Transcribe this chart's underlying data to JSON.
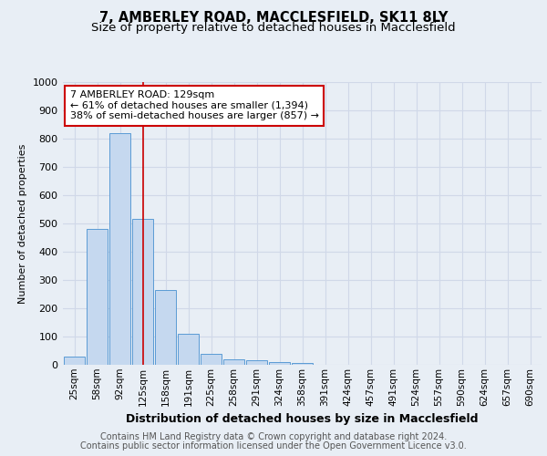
{
  "title1": "7, AMBERLEY ROAD, MACCLESFIELD, SK11 8LY",
  "title2": "Size of property relative to detached houses in Macclesfield",
  "xlabel": "Distribution of detached houses by size in Macclesfield",
  "ylabel": "Number of detached properties",
  "bar_labels": [
    "25sqm",
    "58sqm",
    "92sqm",
    "125sqm",
    "158sqm",
    "191sqm",
    "225sqm",
    "258sqm",
    "291sqm",
    "324sqm",
    "358sqm",
    "391sqm",
    "424sqm",
    "457sqm",
    "491sqm",
    "524sqm",
    "557sqm",
    "590sqm",
    "624sqm",
    "657sqm",
    "690sqm"
  ],
  "bar_values": [
    28,
    480,
    820,
    515,
    265,
    110,
    38,
    20,
    15,
    10,
    8,
    0,
    0,
    0,
    0,
    0,
    0,
    0,
    0,
    0,
    0
  ],
  "bar_color": "#c5d8ef",
  "bar_edge_color": "#5b9bd5",
  "property_index": 3,
  "property_line_color": "#cc0000",
  "annotation_text": "7 AMBERLEY ROAD: 129sqm\n← 61% of detached houses are smaller (1,394)\n38% of semi-detached houses are larger (857) →",
  "annotation_box_color": "#ffffff",
  "annotation_box_edge_color": "#cc0000",
  "ylim": [
    0,
    1000
  ],
  "yticks": [
    0,
    100,
    200,
    300,
    400,
    500,
    600,
    700,
    800,
    900,
    1000
  ],
  "grid_color": "#d0d8e8",
  "bg_color": "#e8eef5",
  "plot_bg_color": "#e8eef5",
  "footer1": "Contains HM Land Registry data © Crown copyright and database right 2024.",
  "footer2": "Contains public sector information licensed under the Open Government Licence v3.0.",
  "title1_fontsize": 10.5,
  "title2_fontsize": 9.5,
  "annotation_fontsize": 8,
  "footer_fontsize": 7,
  "ylabel_fontsize": 8,
  "xlabel_fontsize": 9
}
